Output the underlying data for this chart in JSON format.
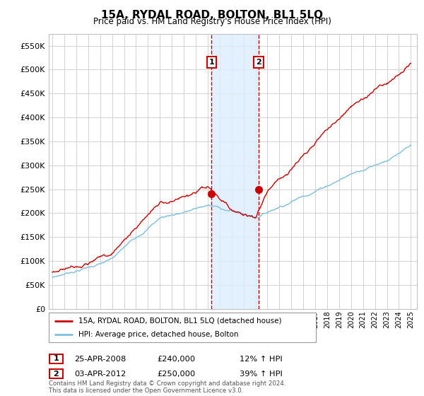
{
  "title": "15A, RYDAL ROAD, BOLTON, BL1 5LQ",
  "subtitle": "Price paid vs. HM Land Registry's House Price Index (HPI)",
  "ylim": [
    0,
    575000
  ],
  "yticks": [
    0,
    50000,
    100000,
    150000,
    200000,
    250000,
    300000,
    350000,
    400000,
    450000,
    500000,
    550000
  ],
  "purchase1": {
    "date_num": 2008.32,
    "price": 240000,
    "label": "1",
    "date_str": "25-APR-2008",
    "pct": "12%"
  },
  "purchase2": {
    "date_num": 2012.26,
    "price": 250000,
    "label": "2",
    "date_str": "03-APR-2012",
    "pct": "39%"
  },
  "hpi_color": "#7fbfdf",
  "price_color": "#cc0000",
  "shade_color": "#ddeeff",
  "legend_label1": "15A, RYDAL ROAD, BOLTON, BL1 5LQ (detached house)",
  "legend_label2": "HPI: Average price, detached house, Bolton",
  "footer": "Contains HM Land Registry data © Crown copyright and database right 2024.\nThis data is licensed under the Open Government Licence v3.0.",
  "table_row1": [
    "1",
    "25-APR-2008",
    "£240,000",
    "12% ↑ HPI"
  ],
  "table_row2": [
    "2",
    "03-APR-2012",
    "£250,000",
    "39% ↑ HPI"
  ]
}
